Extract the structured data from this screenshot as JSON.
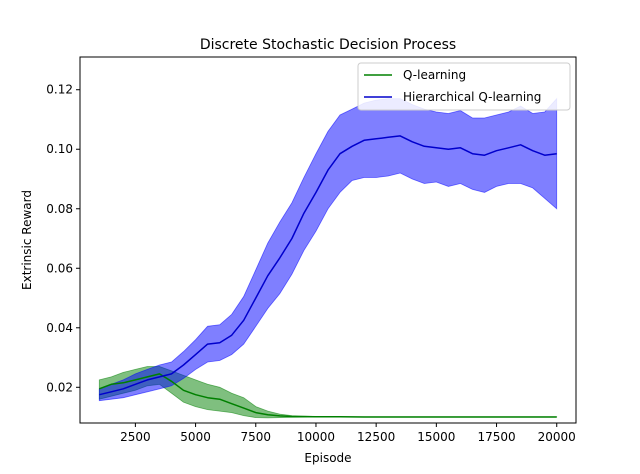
{
  "chart_data": {
    "type": "line",
    "title": "Discrete Stochastic Decision Process",
    "xlabel": "Episode",
    "ylabel": "Extrinsic Reward",
    "xlim": [
      200,
      20800
    ],
    "ylim": [
      0.008,
      0.131
    ],
    "xticks": [
      2500,
      5000,
      7500,
      10000,
      12500,
      15000,
      17500,
      20000
    ],
    "xtick_labels": [
      "2500",
      "5000",
      "7500",
      "10000",
      "12500",
      "15000",
      "17500",
      "20000"
    ],
    "yticks": [
      0.02,
      0.04,
      0.06,
      0.08,
      0.1,
      0.12
    ],
    "ytick_labels": [
      "0.02",
      "0.04",
      "0.06",
      "0.08",
      "0.10",
      "0.12"
    ],
    "grid": false,
    "legend": "top-right",
    "series": [
      {
        "name": "Q-learning",
        "color": "#008000",
        "band_color": "#008000",
        "x": [
          1000,
          1500,
          2000,
          2500,
          3000,
          3500,
          4000,
          4500,
          5000,
          5500,
          6000,
          6500,
          7000,
          7500,
          8000,
          8500,
          9000,
          10000,
          11000,
          12000,
          14000,
          16000,
          18000,
          20000
        ],
        "y": [
          0.0195,
          0.021,
          0.0215,
          0.0225,
          0.0235,
          0.0245,
          0.022,
          0.019,
          0.0175,
          0.0165,
          0.016,
          0.0145,
          0.013,
          0.0115,
          0.0108,
          0.0104,
          0.0102,
          0.0101,
          0.0101,
          0.01,
          0.01,
          0.01,
          0.01,
          0.01
        ],
        "lower": [
          0.016,
          0.017,
          0.018,
          0.019,
          0.0205,
          0.021,
          0.018,
          0.015,
          0.0135,
          0.0125,
          0.012,
          0.0115,
          0.0105,
          0.0098,
          0.0097,
          0.0098,
          0.0099,
          0.01,
          0.01,
          0.01,
          0.01,
          0.01,
          0.01,
          0.01
        ],
        "upper": [
          0.0225,
          0.0235,
          0.025,
          0.026,
          0.027,
          0.027,
          0.0255,
          0.024,
          0.0225,
          0.021,
          0.02,
          0.018,
          0.0165,
          0.0135,
          0.012,
          0.011,
          0.0105,
          0.0102,
          0.0101,
          0.0101,
          0.0101,
          0.0101,
          0.0101,
          0.0101
        ]
      },
      {
        "name": "Hierarchical Q-learning",
        "color": "#0000cc",
        "band_color": "#0000ff",
        "x": [
          1000,
          1500,
          2000,
          2500,
          3000,
          3500,
          4000,
          4500,
          5000,
          5500,
          6000,
          6500,
          7000,
          7500,
          8000,
          8500,
          9000,
          9500,
          10000,
          10500,
          11000,
          11500,
          12000,
          12500,
          13000,
          13500,
          14000,
          14500,
          15000,
          15500,
          16000,
          16500,
          17000,
          17500,
          18000,
          18500,
          19000,
          19500,
          20000
        ],
        "y": [
          0.0175,
          0.0185,
          0.0195,
          0.021,
          0.0225,
          0.0235,
          0.0245,
          0.0275,
          0.031,
          0.0345,
          0.035,
          0.0375,
          0.0425,
          0.05,
          0.0575,
          0.0635,
          0.07,
          0.0785,
          0.0855,
          0.093,
          0.0985,
          0.101,
          0.103,
          0.1035,
          0.104,
          0.1045,
          0.1025,
          0.101,
          0.1005,
          0.1,
          0.1005,
          0.0985,
          0.098,
          0.0995,
          0.1005,
          0.1015,
          0.0995,
          0.098,
          0.0985
        ],
        "lower": [
          0.0155,
          0.016,
          0.0165,
          0.0175,
          0.0185,
          0.0195,
          0.0205,
          0.023,
          0.026,
          0.0285,
          0.029,
          0.031,
          0.0345,
          0.0405,
          0.0465,
          0.0515,
          0.058,
          0.066,
          0.0725,
          0.08,
          0.0855,
          0.0895,
          0.0905,
          0.0905,
          0.091,
          0.092,
          0.09,
          0.0885,
          0.089,
          0.0875,
          0.0885,
          0.0865,
          0.0855,
          0.0875,
          0.0885,
          0.0885,
          0.087,
          0.0835,
          0.08
        ],
        "upper": [
          0.0195,
          0.021,
          0.0225,
          0.0245,
          0.026,
          0.0275,
          0.0285,
          0.032,
          0.036,
          0.0405,
          0.041,
          0.0445,
          0.0505,
          0.0595,
          0.0685,
          0.0755,
          0.082,
          0.0905,
          0.0985,
          0.106,
          0.1115,
          0.1135,
          0.1155,
          0.1165,
          0.117,
          0.117,
          0.115,
          0.1135,
          0.1125,
          0.112,
          0.113,
          0.1105,
          0.1105,
          0.1115,
          0.1125,
          0.1145,
          0.112,
          0.1125,
          0.117
        ]
      }
    ]
  }
}
